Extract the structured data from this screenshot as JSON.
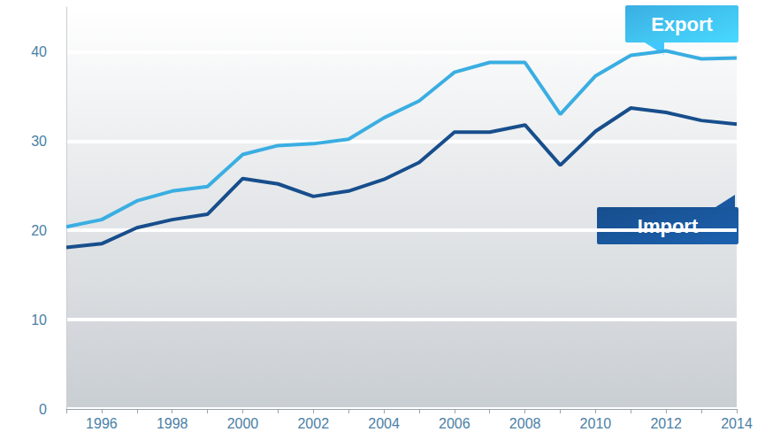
{
  "chart_data": {
    "type": "line",
    "categories": [
      null,
      "1996",
      null,
      "1998",
      null,
      "2000",
      null,
      "2002",
      null,
      "2004",
      null,
      "2006",
      null,
      "2008",
      null,
      "2010",
      null,
      "2012",
      null,
      "2014"
    ],
    "series": [
      {
        "name": "Export",
        "color": "#3aaee2",
        "values": [
          20.4,
          21.2,
          23.3,
          24.4,
          24.9,
          28.5,
          29.5,
          29.7,
          30.2,
          32.6,
          34.5,
          37.7,
          38.8,
          38.8,
          33.0,
          37.3,
          39.6,
          40.1,
          39.2,
          39.3
        ]
      },
      {
        "name": "Import",
        "color": "#174e8c",
        "values": [
          18.1,
          18.5,
          20.3,
          21.2,
          21.8,
          25.8,
          25.2,
          23.8,
          24.4,
          25.7,
          27.6,
          31.0,
          31.0,
          31.8,
          27.3,
          31.1,
          33.7,
          33.2,
          32.3,
          31.9
        ]
      }
    ],
    "ylim": [
      0,
      45
    ],
    "yticks": [
      0,
      10,
      20,
      30,
      40
    ],
    "grid": true
  }
}
